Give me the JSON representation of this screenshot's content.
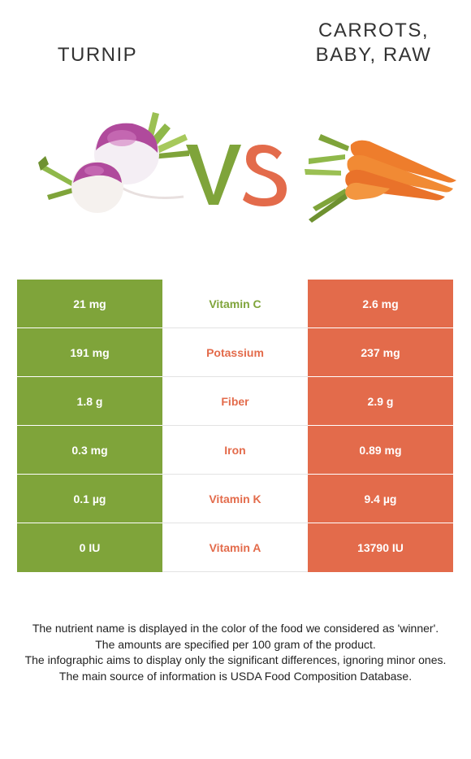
{
  "left_food": {
    "name": "TURNIP"
  },
  "right_food": {
    "name": "CARROTS,\nBABY, RAW"
  },
  "vs": {
    "text": "VS"
  },
  "colors": {
    "left": "#7fa43a",
    "right": "#e36b4b"
  },
  "rows": [
    {
      "nutrient": "Vitamin C",
      "left": "21 mg",
      "right": "2.6 mg",
      "winner": "left"
    },
    {
      "nutrient": "Potassium",
      "left": "191 mg",
      "right": "237 mg",
      "winner": "right"
    },
    {
      "nutrient": "Fiber",
      "left": "1.8 g",
      "right": "2.9 g",
      "winner": "right"
    },
    {
      "nutrient": "Iron",
      "left": "0.3 mg",
      "right": "0.89 mg",
      "winner": "right"
    },
    {
      "nutrient": "Vitamin K",
      "left": "0.1 µg",
      "right": "9.4 µg",
      "winner": "right"
    },
    {
      "nutrient": "Vitamin A",
      "left": "0 IU",
      "right": "13790 IU",
      "winner": "right"
    }
  ],
  "footnotes": [
    "The nutrient name is displayed in the color of the food we considered as 'winner'.",
    "The amounts are specified per 100 gram of the product.",
    "The infographic aims to display only the significant differences, ignoring minor ones.",
    "The main source of information is USDA Food Composition Database."
  ]
}
